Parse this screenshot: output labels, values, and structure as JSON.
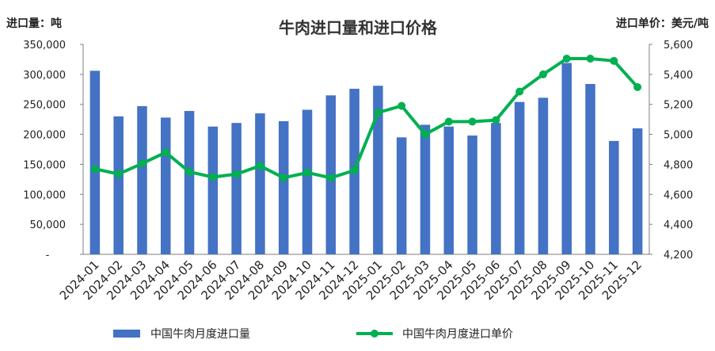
{
  "chart_data": {
    "type": "bar+line",
    "title": "牛肉进口量和进口价格",
    "ylabel_left": "进口量：吨",
    "ylabel_right": "进口单价：美元/吨",
    "ylim_left": [
      0,
      350000
    ],
    "ylim_right": [
      4200,
      5600
    ],
    "yticks_left": [
      "-",
      "50,000",
      "100,000",
      "150,000",
      "200,000",
      "250,000",
      "300,000",
      "350,000"
    ],
    "yticks_right": [
      "4,200",
      "4,400",
      "4,600",
      "4,800",
      "5,000",
      "5,200",
      "5,400",
      "5,600"
    ],
    "categories": [
      "2024-01",
      "2024-02",
      "2024-03",
      "2024-04",
      "2024-05",
      "2024-06",
      "2024-07",
      "2024-08",
      "2024-09",
      "2024-10",
      "2024-11",
      "2024-12",
      "2025-01",
      "2025-02",
      "2025-03",
      "2025-04",
      "2025-05",
      "2025-06",
      "2025-07",
      "2025-08",
      "2025-09",
      "2025-10",
      "2025-11",
      "2025-12"
    ],
    "series": [
      {
        "name": "中国牛肉月度进口量",
        "type": "bar",
        "axis": "left",
        "color": "#4472c4",
        "values": [
          306000,
          230000,
          247000,
          228000,
          239000,
          213000,
          219000,
          235000,
          222000,
          241000,
          265000,
          276000,
          281000,
          195000,
          216000,
          213000,
          198000,
          219000,
          254000,
          261000,
          319000,
          284000,
          189000,
          210000
        ]
      },
      {
        "name": "中国牛肉月度进口单价",
        "type": "line",
        "axis": "right",
        "color": "#00b050",
        "values": [
          4770,
          4735,
          4805,
          4880,
          4750,
          4715,
          4735,
          4790,
          4710,
          4745,
          4710,
          4760,
          5145,
          5190,
          5000,
          5085,
          5085,
          5095,
          5285,
          5400,
          5505,
          5505,
          5490,
          5315
        ]
      }
    ],
    "legend_position": "bottom",
    "grid": false
  }
}
